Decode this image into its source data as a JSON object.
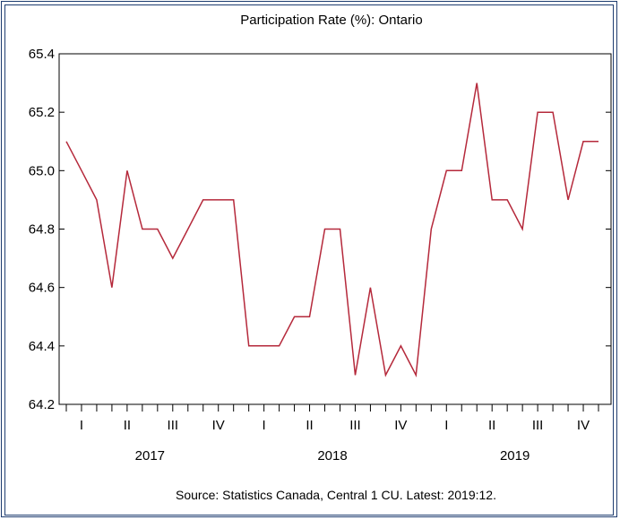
{
  "chart_data": {
    "type": "line",
    "title": "Participation Rate (%): Ontario",
    "source_note": "Source: Statistics Canada, Central 1 CU. Latest: 2019:12.",
    "ylim": [
      64.2,
      65.4
    ],
    "yticks": [
      "64.2",
      "64.4",
      "64.6",
      "64.8",
      "65.0",
      "65.2",
      "65.4"
    ],
    "grid": false,
    "years": [
      "2017",
      "2018",
      "2019"
    ],
    "quarters": [
      "I",
      "II",
      "III",
      "IV"
    ],
    "x": [
      "2017:01",
      "2017:02",
      "2017:03",
      "2017:04",
      "2017:05",
      "2017:06",
      "2017:07",
      "2017:08",
      "2017:09",
      "2017:10",
      "2017:11",
      "2017:12",
      "2018:01",
      "2018:02",
      "2018:03",
      "2018:04",
      "2018:05",
      "2018:06",
      "2018:07",
      "2018:08",
      "2018:09",
      "2018:10",
      "2018:11",
      "2018:12",
      "2019:01",
      "2019:02",
      "2019:03",
      "2019:04",
      "2019:05",
      "2019:06",
      "2019:07",
      "2019:08",
      "2019:09",
      "2019:10",
      "2019:11",
      "2019:12"
    ],
    "series": [
      {
        "color": "#b5293b",
        "values": [
          65.1,
          65.0,
          64.9,
          64.6,
          65.0,
          64.8,
          64.8,
          64.7,
          64.8,
          64.9,
          64.9,
          64.9,
          64.4,
          64.4,
          64.4,
          64.5,
          64.5,
          64.8,
          64.8,
          64.3,
          64.6,
          64.3,
          64.4,
          64.3,
          64.8,
          65.0,
          65.0,
          65.3,
          64.9,
          64.9,
          64.8,
          65.2,
          65.2,
          64.9,
          65.1,
          65.1
        ]
      }
    ]
  }
}
